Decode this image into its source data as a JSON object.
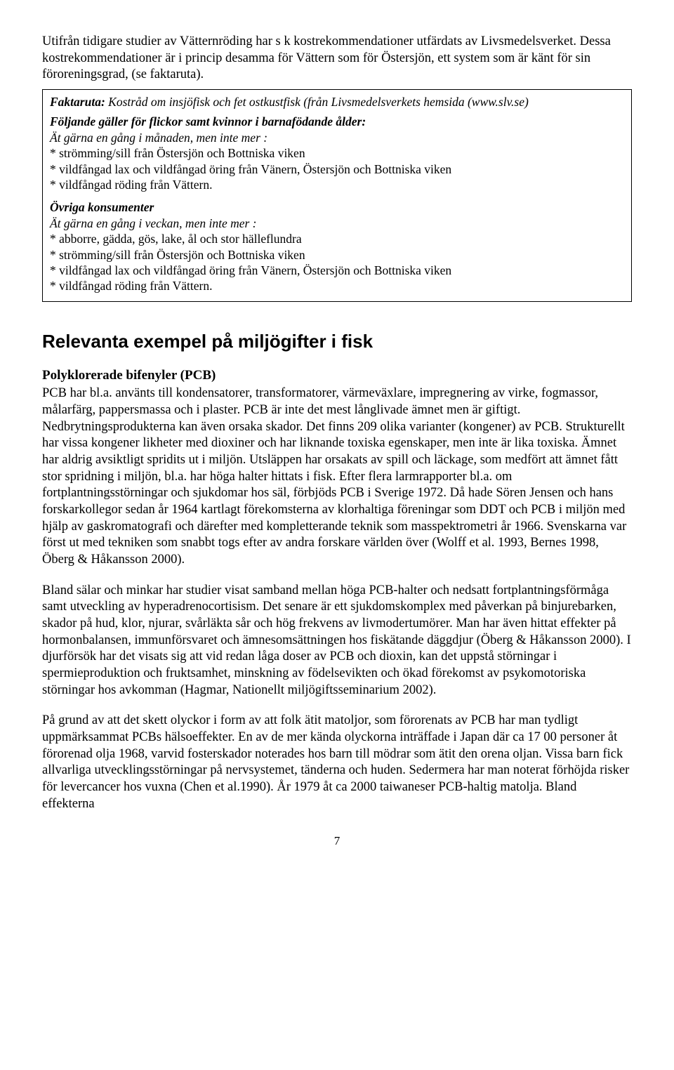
{
  "intro": "Utifrån tidigare studier av Vätternröding har s k kostrekommendationer utfärdats av Livsmedelsverket. Dessa kostrekommendationer är i princip desamma för Vättern som för Östersjön, ett system som är känt för sin föroreningsgrad, (se faktaruta).",
  "factbox": {
    "title_bold": "Faktaruta:",
    "title_rest": " Kostråd om insjöfisk och fet ostkustfisk (från Livsmedelsverkets hemsida (www.slv.se)",
    "group1_head": "Följande gäller för flickor samt kvinnor i barnafödande ålder:",
    "group1_sub": "Ät gärna en gång i månaden, men inte mer :",
    "group1_items": [
      "* strömming/sill från Östersjön och Bottniska viken",
      "* vildfångad lax och vildfångad öring från Vänern, Östersjön och Bottniska viken",
      "* vildfångad röding från Vättern."
    ],
    "group2_head": "Övriga konsumenter",
    "group2_sub": "Ät gärna en gång i veckan, men inte mer :",
    "group2_items": [
      "* abborre, gädda, gös, lake, ål och stor hälleflundra",
      "* strömming/sill från Östersjön och Bottniska viken",
      "* vildfångad lax och vildfångad öring från Vänern, Östersjön och Bottniska viken",
      "* vildfångad röding från Vättern."
    ]
  },
  "section_title": "Relevanta exempel på miljögifter i fisk",
  "pcb_head": "Polyklorerade bifenyler (PCB)",
  "para1": "PCB har bl.a. använts till kondensatorer, transformatorer, värmeväxlare, impregnering av virke, fogmassor, målarfärg, pappersmassa och i plaster. PCB är inte det mest långlivade ämnet men är giftigt. Nedbrytningsprodukterna kan även orsaka skador. Det finns 209 olika varianter (kongener) av PCB. Strukturellt har vissa kongener likheter med dioxiner och har liknande toxiska egenskaper, men inte är lika toxiska. Ämnet har aldrig avsiktligt spridits ut i miljön. Utsläppen har orsakats av spill och läckage, som medfört att ämnet fått stor spridning i miljön, bl.a. har höga halter hittats i fisk. Efter flera larmrapporter bl.a. om fortplantningsstörningar och sjukdomar hos säl, förbjöds PCB i Sverige 1972. Då hade Sören Jensen och hans forskarkollegor sedan år 1964 kartlagt förekomsterna av klorhaltiga föreningar som DDT och PCB i miljön med hjälp av gaskromatografi och därefter med kompletterande teknik som masspektrometri år 1966.  Svenskarna var först ut med tekniken som snabbt togs efter av andra forskare världen över (Wolff et al. 1993, Bernes 1998, Öberg & Håkansson 2000).",
  "para2": "Bland sälar och minkar har studier visat samband mellan höga PCB-halter och nedsatt fortplantningsförmåga samt utveckling av hyperadrenocortisism. Det senare är ett sjukdomskomplex med påverkan på binjurebarken, skador på hud, klor, njurar, svårläkta sår och hög frekvens av livmodertumörer. Man har även hittat effekter på hormonbalansen, immunförsvaret och ämnesomsättningen hos fiskätande däggdjur (Öberg & Håkansson 2000). I djurförsök har det visats sig att vid redan låga doser av PCB och dioxin, kan det uppstå störningar i spermieproduktion och fruktsamhet, minskning av födelsevikten och ökad förekomst av psykomotoriska störningar hos avkomman (Hagmar, Nationellt miljögiftsseminarium 2002).",
  "para3": "På grund av att det skett olyckor i form av att folk ätit matoljor, som förorenats av PCB har man tydligt uppmärksammat PCBs hälsoeffekter. En av de mer kända olyckorna inträffade i Japan där ca 17 00 personer åt förorenad olja 1968, varvid fosterskador noterades hos barn till mödrar som ätit den orena oljan. Vissa barn fick allvarliga utvecklingsstörningar på nervsystemet, tänderna och huden. Sedermera har man noterat förhöjda risker för levercancer hos vuxna (Chen et al.1990). År 1979 åt ca 2000 taiwaneser PCB-haltig matolja. Bland effekterna",
  "page_number": "7"
}
